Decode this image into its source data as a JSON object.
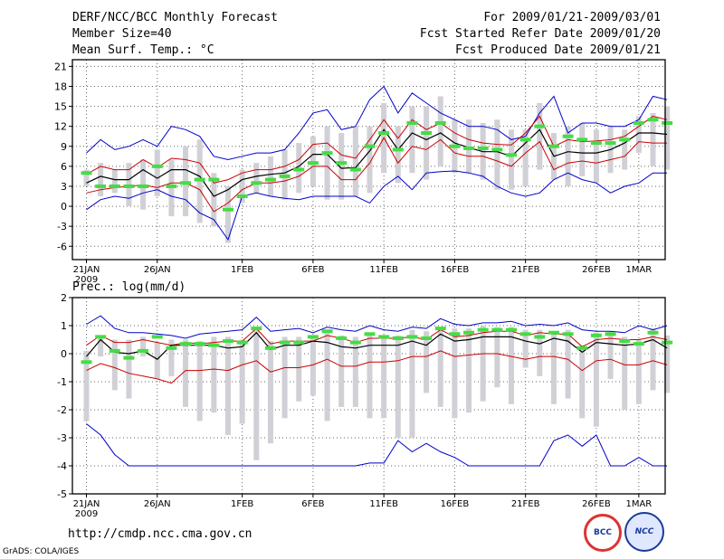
{
  "header": {
    "title": "DERF/NCC/BCC Monthly Forecast",
    "member_size": "Member Size=40",
    "variable": "Mean Surf. Temp.: °C",
    "period": "For 2009/01/21-2009/03/01",
    "started": "Fcst Started Refer Date 2009/01/20",
    "produced": "Fcst Produced Date 2009/01/21"
  },
  "footer": {
    "url": "http://cmdp.ncc.cma.gov.cn",
    "grads": "GrADS: COLA/IGES",
    "logo_bcc": "BCC",
    "logo_ncc": "NCC"
  },
  "colors": {
    "max": "#0000cc",
    "min": "#0000cc",
    "upper": "#cc0000",
    "lower": "#cc0000",
    "mean": "#000000",
    "clim": "#44dd44",
    "box": "#d0d0d6"
  },
  "chart_data": [
    {
      "type": "line",
      "title": "Mean Surf. Temp.: °C",
      "x_tick_labels": [
        "21JAN",
        "26JAN",
        "1FEB",
        "6FEB",
        "11FEB",
        "16FEB",
        "21FEB",
        "26FEB",
        "1MAR"
      ],
      "x_tick_days": [
        0,
        5,
        11,
        16,
        21,
        26,
        31,
        36,
        39
      ],
      "x_sublabel": "2009",
      "ylim": [
        -8,
        22
      ],
      "yticks": [
        -6,
        -3,
        0,
        3,
        6,
        9,
        12,
        15,
        18,
        21
      ],
      "series": [
        {
          "name": "max",
          "values": [
            -0.5,
            1,
            1.5,
            1.2,
            2,
            2.5,
            1.5,
            1,
            -1,
            -2,
            -5,
            1.5,
            2,
            1.5,
            1.2,
            1,
            1.5,
            1.5,
            1.5,
            1.5,
            0.5,
            3,
            4.5,
            2.5,
            5,
            5.2,
            5.3,
            5,
            4.5,
            3,
            2,
            1.5,
            2,
            4,
            5,
            4,
            3.5,
            2,
            3,
            3.5,
            5,
            5
          ]
        },
        {
          "name": "min",
          "values": [
            8,
            10,
            8.5,
            9,
            10,
            9,
            12,
            11.5,
            10.5,
            7.5,
            7,
            7.5,
            8,
            8,
            8.5,
            11,
            14,
            14.5,
            11.5,
            12,
            16,
            18,
            14,
            17,
            15.5,
            14,
            13,
            12,
            12,
            11.5,
            10,
            10.5,
            14,
            16.5,
            11,
            12.5,
            12.5,
            12,
            12,
            13,
            16.5,
            16
          ]
        },
        {
          "name": "upper",
          "values": [
            4.8,
            6,
            5.5,
            5.5,
            7,
            5.8,
            7.2,
            7,
            6.5,
            3.5,
            4,
            5,
            5.5,
            5.5,
            6,
            7,
            9.3,
            9.5,
            7.7,
            7.2,
            10,
            13,
            10.2,
            13,
            11.5,
            12.5,
            11,
            10,
            9.5,
            9.3,
            9.2,
            11,
            13.5,
            9,
            10,
            9.7,
            9.8,
            10,
            10.5,
            12,
            13.5,
            13
          ]
        },
        {
          "name": "lower",
          "values": [
            2,
            2.5,
            2.8,
            3,
            3.2,
            2.8,
            3.5,
            3.5,
            2.5,
            -0.8,
            0.5,
            2.5,
            3.5,
            3.5,
            3.8,
            4.5,
            6,
            6,
            4,
            4,
            6.5,
            10.3,
            6.5,
            9,
            8.5,
            10,
            8,
            7.5,
            7.5,
            6.8,
            6,
            8,
            9.7,
            5.5,
            6.5,
            6.8,
            6.5,
            7,
            7.5,
            9.7,
            9.5,
            9.5
          ]
        },
        {
          "name": "mean",
          "values": [
            3.5,
            4.5,
            4,
            4,
            5.5,
            4.2,
            5.5,
            5.5,
            4.5,
            1.5,
            2.5,
            4,
            4.5,
            4.8,
            5,
            6,
            7.8,
            7.8,
            5.7,
            5.8,
            8.3,
            11.5,
            8.5,
            11,
            10,
            11,
            9.5,
            8.8,
            8.2,
            8.2,
            7.5,
            9.5,
            11.5,
            7.5,
            8.2,
            8,
            8,
            8.5,
            9.5,
            11,
            11,
            10.8
          ]
        },
        {
          "name": "clim",
          "values": [
            5,
            3,
            3,
            3,
            3,
            6,
            3,
            3.5,
            4,
            4,
            -0.5,
            1.5,
            3.5,
            4,
            4.5,
            5.5,
            6.5,
            8,
            6.5,
            5.5,
            9,
            11,
            8.5,
            12.5,
            11,
            12.5,
            9,
            8.7,
            8.7,
            8.5,
            7.7,
            10,
            12,
            9,
            10.5,
            10,
            9.5,
            9.5,
            10,
            12.5,
            13,
            12.5
          ]
        },
        {
          "name": "box_low",
          "values": [
            3,
            1.5,
            2,
            0,
            -0.5,
            1.5,
            -1.5,
            -1.5,
            -2.5,
            -3,
            -5.5,
            0.5,
            2,
            1.5,
            1,
            2,
            3,
            1,
            1,
            1.5,
            2,
            5,
            3.5,
            5,
            4,
            6,
            5,
            5,
            4,
            2.5,
            2.5,
            3,
            5.5,
            4,
            3,
            4.5,
            3.5,
            5,
            5.5,
            8,
            6,
            5.5
          ]
        },
        {
          "name": "box_high",
          "values": [
            5.5,
            6.5,
            5.5,
            6.5,
            7,
            8.5,
            7,
            9,
            10,
            5,
            3,
            5.5,
            6.5,
            7.5,
            8.5,
            9.5,
            10.5,
            12,
            11,
            12,
            12,
            15.5,
            12,
            15,
            15,
            16.5,
            13,
            13,
            12.5,
            13,
            11.5,
            11.5,
            15.5,
            11,
            12,
            12.5,
            11.5,
            12,
            11.5,
            13.5,
            14,
            15
          ]
        }
      ]
    },
    {
      "type": "line",
      "title": "Prec.: log(mm/d)",
      "x_tick_labels": [
        "21JAN",
        "26JAN",
        "1FEB",
        "6FEB",
        "11FEB",
        "16FEB",
        "21FEB",
        "26FEB",
        "1MAR"
      ],
      "x_tick_days": [
        0,
        5,
        11,
        16,
        21,
        26,
        31,
        36,
        39
      ],
      "x_sublabel": "2009",
      "ylim": [
        -5,
        2
      ],
      "yticks": [
        -5,
        -4,
        -3,
        -2,
        -1,
        0,
        1,
        2
      ],
      "series": [
        {
          "name": "max",
          "values": [
            1.05,
            1.35,
            0.9,
            0.75,
            0.75,
            0.7,
            0.65,
            0.55,
            0.7,
            0.75,
            0.8,
            0.85,
            1.3,
            0.8,
            0.85,
            0.9,
            0.75,
            0.95,
            0.85,
            0.8,
            1,
            0.85,
            0.8,
            0.95,
            0.9,
            1.25,
            1.05,
            1,
            1.1,
            1.1,
            1.15,
            1,
            1.05,
            1,
            1.1,
            0.85,
            0.8,
            0.8,
            0.75,
            1,
            0.85,
            1
          ]
        },
        {
          "name": "min",
          "values": [
            -2.5,
            -2.9,
            -3.6,
            -4,
            -4,
            -4,
            -4,
            -4,
            -4,
            -4,
            -4,
            -4,
            -4,
            -4,
            -4,
            -4,
            -4,
            -4,
            -4,
            -4,
            -3.9,
            -3.9,
            -3.1,
            -3.5,
            -3.2,
            -3.5,
            -3.7,
            -4,
            -4,
            -4,
            -4,
            -4,
            -4,
            -3.1,
            -2.9,
            -3.3,
            -2.9,
            -4,
            -4,
            -3.7,
            -4,
            -4
          ]
        },
        {
          "name": "upper",
          "values": [
            0.3,
            0.65,
            0.4,
            0.4,
            0.5,
            0.4,
            0.3,
            0.4,
            0.35,
            0.4,
            0.45,
            0.45,
            0.9,
            0.35,
            0.45,
            0.45,
            0.45,
            0.65,
            0.55,
            0.4,
            0.55,
            0.55,
            0.55,
            0.6,
            0.5,
            0.85,
            0.6,
            0.65,
            0.75,
            0.8,
            0.8,
            0.65,
            0.75,
            0.7,
            0.7,
            0.25,
            0.5,
            0.55,
            0.5,
            0.5,
            0.6,
            0.5
          ]
        },
        {
          "name": "lower",
          "values": [
            -0.6,
            -0.35,
            -0.5,
            -0.7,
            -0.8,
            -0.9,
            -1.05,
            -0.6,
            -0.6,
            -0.55,
            -0.6,
            -0.4,
            -0.25,
            -0.65,
            -0.5,
            -0.5,
            -0.4,
            -0.2,
            -0.45,
            -0.45,
            -0.3,
            -0.3,
            -0.25,
            -0.1,
            -0.1,
            0.1,
            -0.1,
            -0.05,
            0,
            0,
            -0.1,
            -0.2,
            -0.1,
            -0.1,
            -0.2,
            -0.6,
            -0.25,
            -0.2,
            -0.4,
            -0.4,
            -0.25,
            -0.4
          ]
        },
        {
          "name": "mean",
          "values": [
            -0.1,
            0.5,
            0.05,
            0,
            0.1,
            -0.2,
            0.3,
            0.3,
            0.3,
            0.3,
            0.2,
            0.25,
            0.75,
            0.15,
            0.3,
            0.3,
            0.45,
            0.4,
            0.25,
            0.2,
            0.3,
            0.3,
            0.3,
            0.45,
            0.3,
            0.7,
            0.45,
            0.5,
            0.6,
            0.6,
            0.6,
            0.45,
            0.35,
            0.55,
            0.45,
            0.05,
            0.4,
            0.35,
            0.3,
            0.35,
            0.5,
            0.2
          ]
        },
        {
          "name": "clim",
          "values": [
            -0.3,
            0.6,
            0.1,
            -0.15,
            0.1,
            0.6,
            0.2,
            0.35,
            0.35,
            0.3,
            0.45,
            0.4,
            0.9,
            0.2,
            0.4,
            0.4,
            0.6,
            0.8,
            0.55,
            0.4,
            0.7,
            0.6,
            0.55,
            0.6,
            0.55,
            0.9,
            0.7,
            0.75,
            0.85,
            0.85,
            0.85,
            0.7,
            0.6,
            0.75,
            0.7,
            0.2,
            0.65,
            0.7,
            0.45,
            0.35,
            0.75,
            0.4
          ]
        },
        {
          "name": "box_low",
          "values": [
            -2.4,
            -0.1,
            -1.3,
            -1.6,
            -0.1,
            -0.9,
            -0.8,
            -1.9,
            -2.4,
            -2.1,
            -2.9,
            -2.5,
            -3.8,
            -3.2,
            -2.3,
            -1.7,
            -1.5,
            -2.4,
            -1.9,
            -1.9,
            -2.3,
            -2.3,
            -3,
            -3,
            -1.4,
            -1.9,
            -2.3,
            -2.1,
            -1.7,
            -1.2,
            -1.8,
            -0.5,
            -0.8,
            -1.8,
            -1.6,
            -2.3,
            -2.6,
            -0.9,
            -2,
            -1.8,
            -1.3,
            -1.4
          ]
        },
        {
          "name": "box_high",
          "values": [
            0.1,
            0.6,
            0.5,
            0.5,
            0.6,
            0.4,
            0.5,
            0.5,
            0.45,
            0.6,
            0.6,
            0.5,
            0.95,
            0.45,
            0.6,
            0.6,
            0.6,
            0.85,
            0.65,
            0.6,
            0.75,
            0.65,
            0.65,
            0.85,
            0.8,
            0.95,
            0.9,
            0.9,
            1,
            0.95,
            0.95,
            0.85,
            0.85,
            0.8,
            0.85,
            0.3,
            0.75,
            0.8,
            0.6,
            0.5,
            0.9,
            0.65
          ]
        }
      ]
    }
  ]
}
